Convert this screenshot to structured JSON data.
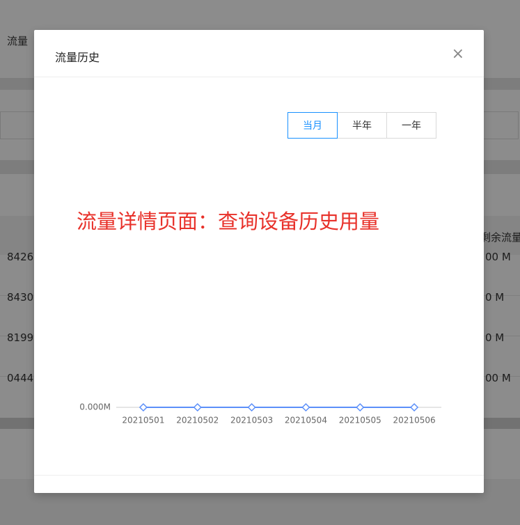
{
  "background": {
    "section_title": "流量",
    "column_header": "剩余流量",
    "rows": [
      [
        "8426",
        "00 M"
      ],
      [
        "8430",
        "0 M"
      ],
      [
        "8199",
        "0 M"
      ],
      [
        "0444",
        "00 M"
      ]
    ]
  },
  "modal": {
    "title": "流量历史",
    "close": "×",
    "tabs": [
      "当月",
      "半年",
      "一年"
    ],
    "active_tab": 0,
    "annotation": "流量详情页面：查询设备历史用量"
  },
  "chart_data": {
    "type": "line",
    "categories": [
      "20210501",
      "20210502",
      "20210503",
      "20210504",
      "20210505",
      "20210506"
    ],
    "values": [
      0,
      0,
      0,
      0,
      0,
      0
    ],
    "color": "#5b8ff9",
    "ylim": [
      0,
      1
    ],
    "yticks": [
      {
        "value": 0,
        "label": "0.000M"
      }
    ]
  }
}
